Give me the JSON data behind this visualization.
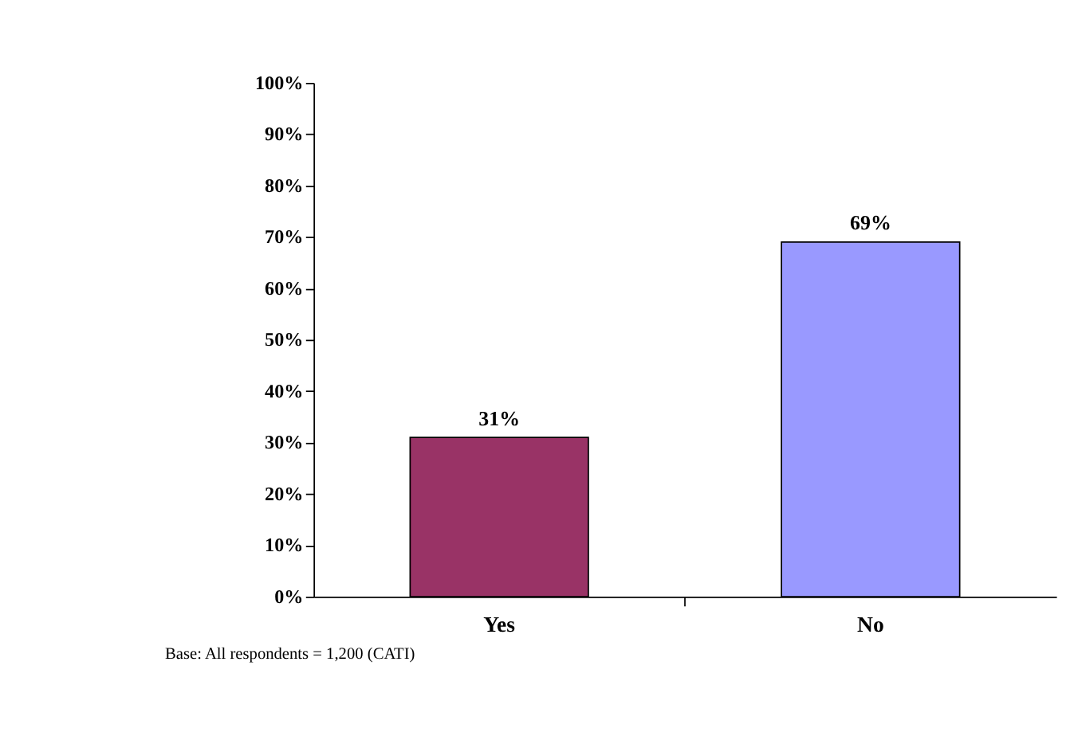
{
  "chart_data": {
    "type": "bar",
    "categories": [
      "Yes",
      "No"
    ],
    "values": [
      31,
      69
    ],
    "colors": [
      "#993366",
      "#9999ff"
    ],
    "value_labels": [
      "31%",
      "69%"
    ],
    "ylim": [
      0,
      100
    ],
    "yticks": [
      {
        "value": 0,
        "label": "0%"
      },
      {
        "value": 10,
        "label": "10%"
      },
      {
        "value": 20,
        "label": "20%"
      },
      {
        "value": 30,
        "label": "30%"
      },
      {
        "value": 40,
        "label": "40%"
      },
      {
        "value": 50,
        "label": "50%"
      },
      {
        "value": 60,
        "label": "60%"
      },
      {
        "value": 70,
        "label": "70%"
      },
      {
        "value": 80,
        "label": "80%"
      },
      {
        "value": 90,
        "label": "90%"
      },
      {
        "value": 100,
        "label": "100%"
      }
    ],
    "grid": false,
    "legend": false,
    "annotations": [
      "Base:      All respondents = 1,200  (CATI)"
    ]
  }
}
